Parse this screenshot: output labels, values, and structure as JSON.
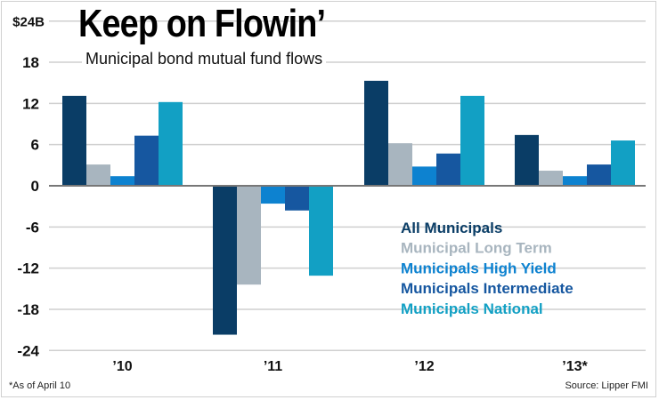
{
  "chart_data": {
    "type": "bar",
    "title": "Keep on Flowin’",
    "subtitle": "Municipal bond mutual fund flows",
    "categories": [
      "’10",
      "’11",
      "’12",
      "’13*"
    ],
    "ylim": [
      -24,
      24
    ],
    "yticks": [
      -24,
      -18,
      -12,
      -6,
      0,
      6,
      12,
      18,
      24
    ],
    "ytick_labels": [
      "-24",
      "-18",
      "-12",
      "-6",
      "0",
      "6",
      "12",
      "18",
      "$24B"
    ],
    "grid": true,
    "legend_placement": "center-right",
    "series": [
      {
        "name": "All Municipals",
        "color": "#0a3d66",
        "values": [
          13.1,
          -21.7,
          15.3,
          7.4
        ]
      },
      {
        "name": "Municipal Long Term",
        "color": "#a8b5bf",
        "values": [
          3.1,
          -14.4,
          6.2,
          2.2
        ]
      },
      {
        "name": "Municipals High Yield",
        "color": "#0d82d0",
        "values": [
          1.4,
          -2.6,
          2.8,
          1.4
        ]
      },
      {
        "name": "Municipals Intermediate",
        "color": "#1657a0",
        "values": [
          7.3,
          -3.6,
          4.7,
          3.1
        ]
      },
      {
        "name": "Municipals National",
        "color": "#12a0c4",
        "values": [
          12.2,
          -13.1,
          13.1,
          6.6
        ]
      }
    ],
    "footnote": "*As of April 10",
    "source": "Source: Lipper FMI"
  }
}
